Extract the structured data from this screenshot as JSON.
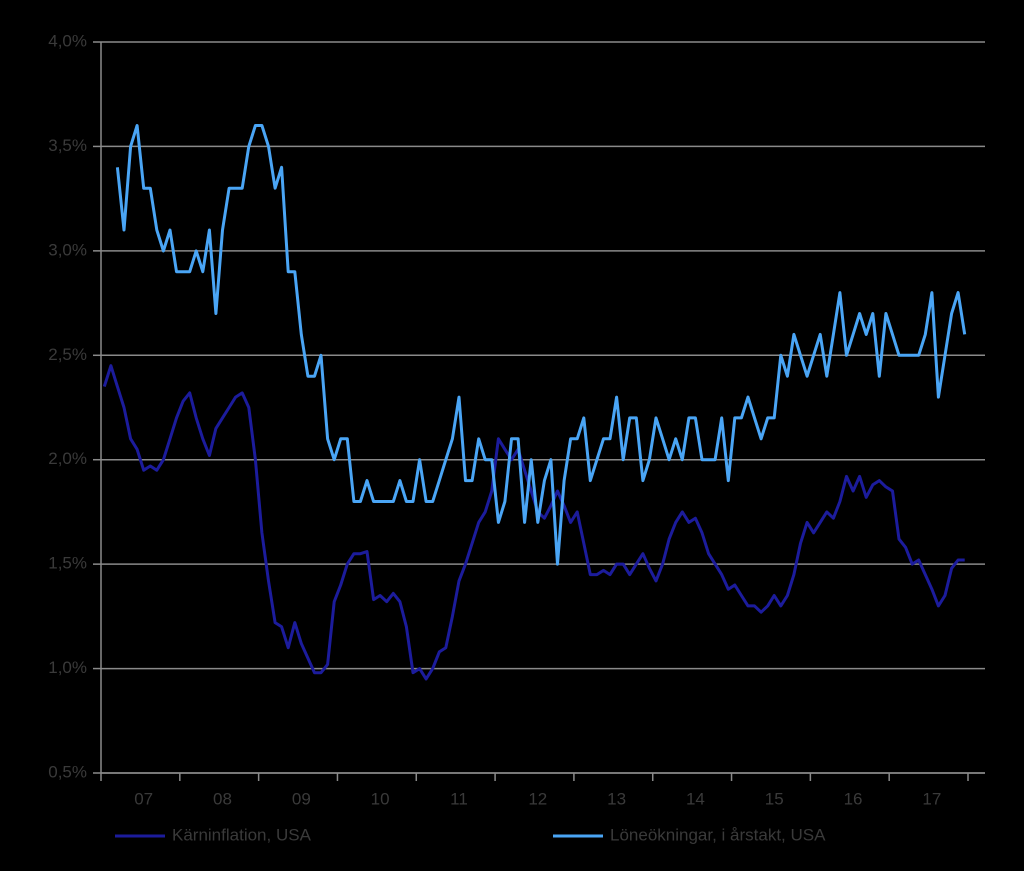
{
  "chart_data": {
    "type": "line",
    "categories": [
      null,
      null,
      null,
      null,
      null,
      null,
      "07",
      null,
      null,
      null,
      null,
      null,
      null,
      null,
      null,
      null,
      null,
      null,
      "08",
      null,
      null,
      null,
      null,
      null,
      null,
      null,
      null,
      null,
      null,
      null,
      "09",
      null,
      null,
      null,
      null,
      null,
      null,
      null,
      null,
      null,
      null,
      null,
      "10",
      null,
      null,
      null,
      null,
      null,
      null,
      null,
      null,
      null,
      null,
      null,
      "11",
      null,
      null,
      null,
      null,
      null,
      null,
      null,
      null,
      null,
      null,
      null,
      "12",
      null,
      null,
      null,
      null,
      null,
      null,
      null,
      null,
      null,
      null,
      null,
      "13",
      null,
      null,
      null,
      null,
      null,
      null,
      null,
      null,
      null,
      null,
      null,
      "14",
      null,
      null,
      null,
      null,
      null,
      null,
      null,
      null,
      null,
      null,
      null,
      "15",
      null,
      null,
      null,
      null,
      null,
      null,
      null,
      null,
      null,
      null,
      null,
      "16",
      null,
      null,
      null,
      null,
      null,
      null,
      null,
      null,
      null,
      null,
      null,
      "17",
      null,
      null,
      null,
      null,
      null
    ],
    "series": [
      {
        "name": "Kärninflation, USA",
        "color": "#1c1c9c",
        "values": [
          2.35,
          2.45,
          2.35,
          2.25,
          2.1,
          2.05,
          1.95,
          1.97,
          1.95,
          2.0,
          2.1,
          2.2,
          2.28,
          2.32,
          2.2,
          2.1,
          2.02,
          2.15,
          2.2,
          2.25,
          2.3,
          2.32,
          2.25,
          2.0,
          1.65,
          1.42,
          1.22,
          1.2,
          1.1,
          1.22,
          1.12,
          1.05,
          0.98,
          0.98,
          1.02,
          1.32,
          1.4,
          1.5,
          1.55,
          1.55,
          1.56,
          1.33,
          1.35,
          1.32,
          1.36,
          1.32,
          1.2,
          0.98,
          1.0,
          0.95,
          1.0,
          1.08,
          1.1,
          1.25,
          1.42,
          1.5,
          1.6,
          1.7,
          1.75,
          1.85,
          2.1,
          2.05,
          2.0,
          2.05,
          1.95,
          1.85,
          1.75,
          1.72,
          1.78,
          1.85,
          1.78,
          1.7,
          1.75,
          1.6,
          1.45,
          1.45,
          1.47,
          1.45,
          1.5,
          1.5,
          1.45,
          1.5,
          1.55,
          1.48,
          1.42,
          1.5,
          1.62,
          1.7,
          1.75,
          1.7,
          1.72,
          1.65,
          1.55,
          1.5,
          1.45,
          1.38,
          1.4,
          1.35,
          1.3,
          1.3,
          1.27,
          1.3,
          1.35,
          1.3,
          1.35,
          1.45,
          1.6,
          1.7,
          1.65,
          1.7,
          1.75,
          1.72,
          1.8,
          1.92,
          1.85,
          1.92,
          1.82,
          1.88,
          1.9,
          1.87,
          1.85,
          1.62,
          1.58,
          1.5,
          1.52,
          1.45,
          1.38,
          1.3,
          1.35,
          1.48,
          1.52,
          1.52
        ]
      },
      {
        "name": "Löneökningar, i årstakt, USA",
        "color": "#4aa5f5",
        "values": [
          null,
          null,
          3.4,
          3.1,
          3.5,
          3.6,
          3.3,
          3.3,
          3.1,
          3.0,
          3.1,
          2.9,
          2.9,
          2.9,
          3.0,
          2.9,
          3.1,
          2.7,
          3.1,
          3.3,
          3.3,
          3.3,
          3.5,
          3.6,
          3.6,
          3.5,
          3.3,
          3.4,
          2.9,
          2.9,
          2.6,
          2.4,
          2.4,
          2.5,
          2.1,
          2.0,
          2.1,
          2.1,
          1.8,
          1.8,
          1.9,
          1.8,
          1.8,
          1.8,
          1.8,
          1.9,
          1.8,
          1.8,
          2.0,
          1.8,
          1.8,
          1.9,
          2.0,
          2.1,
          2.3,
          1.9,
          1.9,
          2.1,
          2.0,
          2.0,
          1.7,
          1.8,
          2.1,
          2.1,
          1.7,
          2.0,
          1.7,
          1.9,
          2.0,
          1.5,
          1.9,
          2.1,
          2.1,
          2.2,
          1.9,
          2.0,
          2.1,
          2.1,
          2.3,
          2.0,
          2.2,
          2.2,
          1.9,
          2.0,
          2.2,
          2.1,
          2.0,
          2.1,
          2.0,
          2.2,
          2.2,
          2.0,
          2.0,
          2.0,
          2.2,
          1.9,
          2.2,
          2.2,
          2.3,
          2.2,
          2.1,
          2.2,
          2.2,
          2.5,
          2.4,
          2.6,
          2.5,
          2.4,
          2.5,
          2.6,
          2.4,
          2.6,
          2.8,
          2.5,
          2.6,
          2.7,
          2.6,
          2.7,
          2.4,
          2.7,
          2.6,
          2.5,
          2.5,
          2.5,
          2.5,
          2.6,
          2.8,
          2.3,
          2.5,
          2.7,
          2.8,
          2.6
        ]
      }
    ],
    "ylim": [
      0.5,
      4.0
    ],
    "yticks": [
      {
        "value": 0.5,
        "label": "0,5%"
      },
      {
        "value": 1.0,
        "label": "1,0%"
      },
      {
        "value": 1.5,
        "label": "1,5%"
      },
      {
        "value": 2.0,
        "label": "2,0%"
      },
      {
        "value": 2.5,
        "label": "2,5%"
      },
      {
        "value": 3.0,
        "label": "3,0%"
      },
      {
        "value": 3.5,
        "label": "3,5%"
      },
      {
        "value": 4.0,
        "label": "4,0%"
      }
    ],
    "grid": true
  }
}
